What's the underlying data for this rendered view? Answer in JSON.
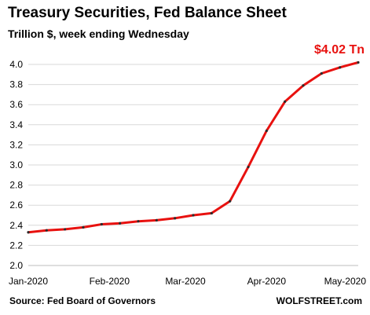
{
  "chart_data": {
    "type": "line",
    "title": "Treasury Securities, Fed Balance Sheet",
    "subtitle": "Trillion $, week ending Wednesday",
    "x_tick_labels": [
      "Jan-2020",
      "Feb-2020",
      "Mar-2020",
      "Apr-2020",
      "May-2020"
    ],
    "ylim": [
      2.0,
      4.0
    ],
    "y_ticks": [
      2.0,
      2.2,
      2.4,
      2.6,
      2.8,
      3.0,
      3.2,
      3.4,
      3.6,
      3.8,
      4.0
    ],
    "y_tick_labels": [
      "2.0",
      "2.2",
      "2.4",
      "2.6",
      "2.8",
      "3.0",
      "3.2",
      "3.4",
      "3.6",
      "3.8",
      "4.0"
    ],
    "grid": "horizontal",
    "series": [
      {
        "color": "#e8110f",
        "x": [
          "2020-01-01",
          "2020-01-08",
          "2020-01-15",
          "2020-01-22",
          "2020-01-29",
          "2020-02-05",
          "2020-02-12",
          "2020-02-19",
          "2020-02-26",
          "2020-03-04",
          "2020-03-11",
          "2020-03-18",
          "2020-03-25",
          "2020-04-01",
          "2020-04-08",
          "2020-04-15",
          "2020-04-22",
          "2020-04-29",
          "2020-05-06"
        ],
        "values": [
          2.33,
          2.35,
          2.36,
          2.38,
          2.41,
          2.42,
          2.44,
          2.45,
          2.47,
          2.5,
          2.52,
          2.64,
          2.98,
          3.34,
          3.63,
          3.79,
          3.91,
          3.97,
          4.02
        ]
      }
    ],
    "annotation": {
      "text": "$4.02 Tn",
      "color": "#e8110f"
    },
    "source": "Source: Fed Board of Governors",
    "brand": "WOLFSTREET.com"
  }
}
